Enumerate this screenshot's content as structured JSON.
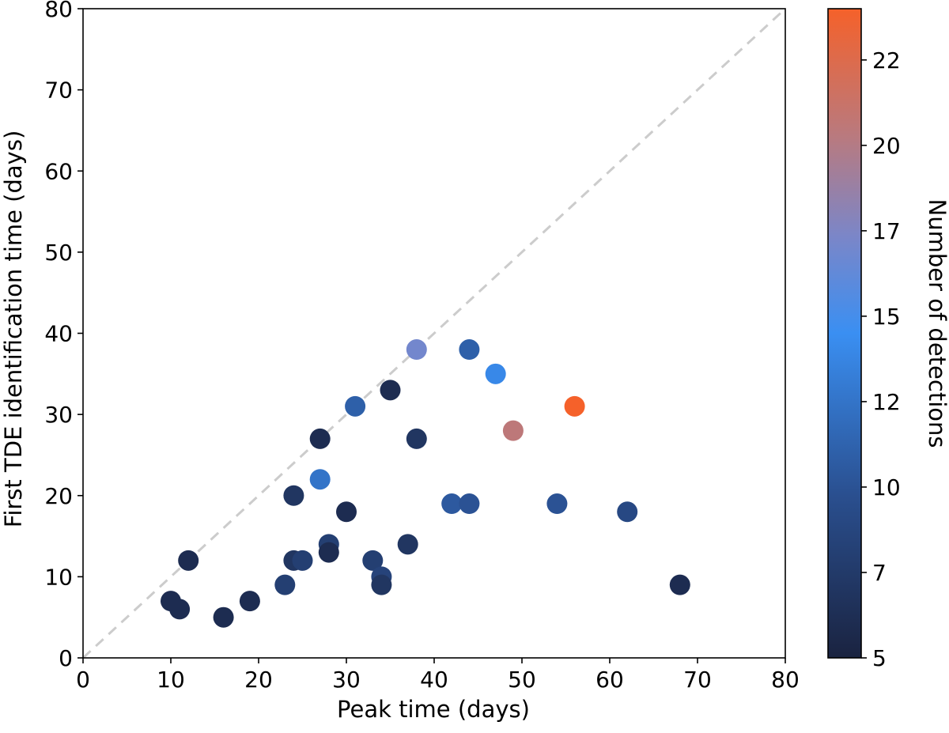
{
  "chart_data": {
    "type": "scatter",
    "xlabel": "Peak time (days)",
    "ylabel": "First TDE identification time (days)",
    "xlim": [
      0,
      80
    ],
    "ylim": [
      0,
      80
    ],
    "x_ticks": [
      "0",
      "10",
      "20",
      "30",
      "40",
      "50",
      "60",
      "70",
      "80"
    ],
    "y_ticks": [
      "0",
      "10",
      "20",
      "30",
      "40",
      "50",
      "60",
      "70",
      "80"
    ],
    "grid": false,
    "reference_line": {
      "from": [
        0,
        0
      ],
      "to": [
        80,
        80
      ],
      "style": "dashed",
      "color": "#cccccc"
    },
    "colorbar": {
      "label": "Number of detections",
      "range": [
        5,
        24
      ],
      "tick_values": [
        5,
        7.5,
        10,
        12.5,
        15,
        17.5,
        20,
        22.5
      ],
      "tick_labels": [
        "5",
        "7",
        "10",
        "12",
        "15",
        "17",
        "20",
        "22"
      ],
      "colormap": [
        {
          "pos": 0.0,
          "color": "#1a2340"
        },
        {
          "pos": 0.25,
          "color": "#2a4f8f"
        },
        {
          "pos": 0.5,
          "color": "#3a8ff2"
        },
        {
          "pos": 0.65,
          "color": "#7b86c8"
        },
        {
          "pos": 0.8,
          "color": "#b87a80"
        },
        {
          "pos": 1.0,
          "color": "#f5612a"
        }
      ]
    },
    "points": [
      {
        "x": 10,
        "y": 7,
        "c": 6
      },
      {
        "x": 11,
        "y": 6,
        "c": 6
      },
      {
        "x": 12,
        "y": 12,
        "c": 6
      },
      {
        "x": 16,
        "y": 5,
        "c": 6
      },
      {
        "x": 19,
        "y": 7,
        "c": 6
      },
      {
        "x": 23,
        "y": 9,
        "c": 8
      },
      {
        "x": 24,
        "y": 12,
        "c": 7
      },
      {
        "x": 24,
        "y": 20,
        "c": 7
      },
      {
        "x": 25,
        "y": 12,
        "c": 8
      },
      {
        "x": 27,
        "y": 27,
        "c": 6
      },
      {
        "x": 27,
        "y": 22,
        "c": 12.5
      },
      {
        "x": 28,
        "y": 14,
        "c": 8
      },
      {
        "x": 28,
        "y": 13,
        "c": 6
      },
      {
        "x": 30,
        "y": 18,
        "c": 6
      },
      {
        "x": 31,
        "y": 31,
        "c": 11
      },
      {
        "x": 33,
        "y": 12,
        "c": 8
      },
      {
        "x": 34,
        "y": 10,
        "c": 8.5
      },
      {
        "x": 34,
        "y": 9,
        "c": 7
      },
      {
        "x": 35,
        "y": 33,
        "c": 6
      },
      {
        "x": 37,
        "y": 14,
        "c": 7
      },
      {
        "x": 38,
        "y": 27,
        "c": 7
      },
      {
        "x": 38,
        "y": 38,
        "c": 17
      },
      {
        "x": 42,
        "y": 19,
        "c": 10.5
      },
      {
        "x": 44,
        "y": 38,
        "c": 11
      },
      {
        "x": 44,
        "y": 19,
        "c": 10
      },
      {
        "x": 47,
        "y": 35,
        "c": 14
      },
      {
        "x": 49,
        "y": 28,
        "c": 20.5
      },
      {
        "x": 54,
        "y": 19,
        "c": 10
      },
      {
        "x": 56,
        "y": 31,
        "c": 24
      },
      {
        "x": 62,
        "y": 18,
        "c": 9
      },
      {
        "x": 68,
        "y": 9,
        "c": 6
      }
    ]
  }
}
